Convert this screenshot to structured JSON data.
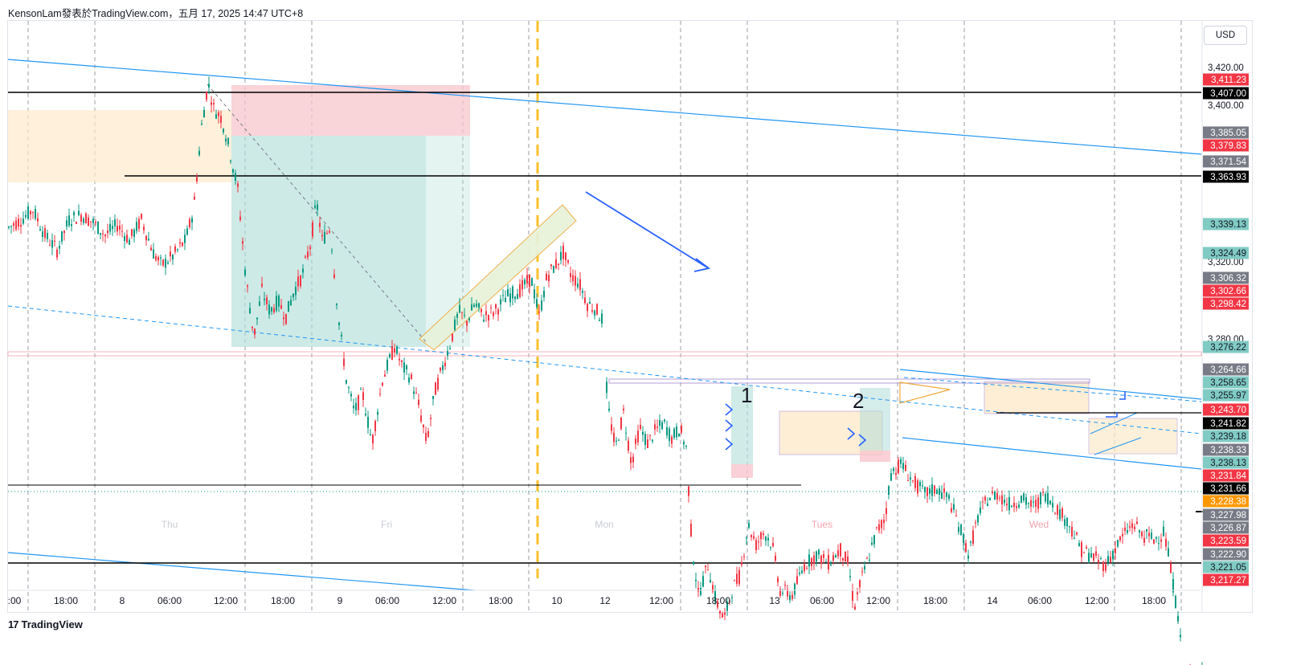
{
  "header": {
    "publisher": "KensonLam發表於TradingView.com，五月 17, 2025 14:47 UTC+8"
  },
  "currency_button": "USD",
  "footer": {
    "logo_glyph": "17",
    "brand": "TradingView"
  },
  "colors": {
    "up": "#089981",
    "down": "#f23645",
    "trendline": "#2196f3",
    "arrow": "#2962ff",
    "zone_red": "#f7c5cc",
    "zone_green": "#b2dfd8",
    "zone_orange": "#fdeacb",
    "session_marker": "#fbc02d"
  },
  "chart_data": {
    "type": "candlestick",
    "symbol_currency": "USD",
    "price_axis": {
      "range": [
        3212,
        3432
      ],
      "ticks": [
        "3,420.00",
        "3,400.00",
        "3,320.00",
        "3,280.00"
      ]
    },
    "time_axis": {
      "ticks": [
        ":00",
        "18:00",
        "8",
        "06:00",
        "12:00",
        "18:00",
        "9",
        "06:00",
        "12:00",
        "18:00",
        "10",
        "12",
        "12:00",
        "18:00",
        "13",
        "06:00",
        "12:00",
        "18:00",
        "14",
        "06:00",
        "12:00",
        "18:00"
      ]
    },
    "day_watermarks": [
      "Thu",
      "Fri",
      "Mon",
      "Tues",
      "Wed"
    ],
    "price_labels": [
      {
        "text": "3,411.23",
        "value": 3411.23,
        "style": "red"
      },
      {
        "text": "3,407.00",
        "value": 3407.0,
        "style": "black"
      },
      {
        "text": "3,385.05",
        "value": 3385.05,
        "style": "gray"
      },
      {
        "text": "3,379.83",
        "value": 3379.83,
        "style": "red"
      },
      {
        "text": "3,371.54",
        "value": 3371.54,
        "style": "gray"
      },
      {
        "text": "3,363.93",
        "value": 3363.93,
        "style": "black"
      },
      {
        "text": "3,339.13",
        "value": 3339.13,
        "style": "green"
      },
      {
        "text": "3,324.49",
        "value": 3324.49,
        "style": "green"
      },
      {
        "text": "3,306.32",
        "value": 3306.32,
        "style": "gray"
      },
      {
        "text": "3,302.66",
        "value": 3302.66,
        "style": "red"
      },
      {
        "text": "3,298.42",
        "value": 3298.42,
        "style": "red"
      },
      {
        "text": "3,276.22",
        "value": 3276.22,
        "style": "green"
      },
      {
        "text": "3,264.66",
        "value": 3264.66,
        "style": "gray"
      },
      {
        "text": "3,258.65",
        "value": 3258.65,
        "style": "green"
      },
      {
        "text": "3,255.97",
        "value": 3255.97,
        "style": "green"
      },
      {
        "text": "3,243.70",
        "value": 3243.7,
        "style": "red"
      },
      {
        "text": "3,241.82",
        "value": 3241.82,
        "style": "black"
      },
      {
        "text": "3,239.18",
        "value": 3239.18,
        "style": "green"
      },
      {
        "text": "3,238.33",
        "value": 3238.33,
        "style": "gray"
      },
      {
        "text": "3,238.13",
        "value": 3238.13,
        "style": "green"
      },
      {
        "text": "3,231.84",
        "value": 3231.84,
        "style": "red"
      },
      {
        "text": "3,231.66",
        "value": 3231.66,
        "style": "black"
      },
      {
        "text": "3,228.38",
        "value": 3228.38,
        "style": "orange"
      },
      {
        "text": "3,227.98",
        "value": 3227.98,
        "style": "gray"
      },
      {
        "text": "3,226.87",
        "value": 3226.87,
        "style": "gray"
      },
      {
        "text": "3,223.59",
        "value": 3223.59,
        "style": "red"
      },
      {
        "text": "3,222.90",
        "value": 3222.9,
        "style": "gray"
      },
      {
        "text": "3,221.05",
        "value": 3221.05,
        "style": "green"
      },
      {
        "text": "3,217.27",
        "value": 3217.27,
        "style": "red"
      }
    ],
    "horizontal_levels": [
      3407.0,
      3363.93,
      3241.82,
      3233.5,
      3221.05
    ],
    "annotations": [
      "1",
      "2"
    ],
    "price_path": [
      [
        0,
        3350
      ],
      [
        10,
        3355
      ],
      [
        25,
        3358
      ],
      [
        40,
        3362
      ],
      [
        55,
        3352
      ],
      [
        70,
        3346
      ],
      [
        85,
        3358
      ],
      [
        100,
        3360
      ],
      [
        115,
        3357
      ],
      [
        130,
        3352
      ],
      [
        145,
        3356
      ],
      [
        160,
        3350
      ],
      [
        175,
        3358
      ],
      [
        190,
        3345
      ],
      [
        200,
        3340
      ],
      [
        215,
        3344
      ],
      [
        230,
        3350
      ],
      [
        240,
        3362
      ],
      [
        250,
        3395
      ],
      [
        258,
        3412
      ],
      [
        265,
        3402
      ],
      [
        275,
        3398
      ],
      [
        285,
        3385
      ],
      [
        295,
        3370
      ],
      [
        305,
        3335
      ],
      [
        315,
        3312
      ],
      [
        325,
        3330
      ],
      [
        335,
        3322
      ],
      [
        345,
        3326
      ],
      [
        355,
        3320
      ],
      [
        365,
        3330
      ],
      [
        375,
        3336
      ],
      [
        385,
        3348
      ],
      [
        393,
        3365
      ],
      [
        400,
        3350
      ],
      [
        410,
        3355
      ],
      [
        420,
        3320
      ],
      [
        430,
        3295
      ],
      [
        440,
        3282
      ],
      [
        450,
        3290
      ],
      [
        462,
        3270
      ],
      [
        475,
        3295
      ],
      [
        490,
        3308
      ],
      [
        500,
        3300
      ],
      [
        510,
        3296
      ],
      [
        520,
        3285
      ],
      [
        530,
        3270
      ],
      [
        540,
        3290
      ],
      [
        550,
        3300
      ],
      [
        560,
        3310
      ],
      [
        570,
        3322
      ],
      [
        580,
        3318
      ],
      [
        590,
        3325
      ],
      [
        600,
        3320
      ],
      [
        615,
        3322
      ],
      [
        630,
        3328
      ],
      [
        645,
        3330
      ],
      [
        660,
        3335
      ],
      [
        670,
        3320
      ],
      [
        680,
        3336
      ],
      [
        690,
        3340
      ],
      [
        700,
        3345
      ],
      [
        710,
        3336
      ],
      [
        720,
        3333
      ],
      [
        730,
        3325
      ],
      [
        740,
        3323
      ],
      [
        750,
        3318
      ],
      [
        755,
        3285
      ],
      [
        765,
        3268
      ],
      [
        775,
        3282
      ],
      [
        785,
        3262
      ],
      [
        795,
        3276
      ],
      [
        805,
        3270
      ],
      [
        815,
        3275
      ],
      [
        825,
        3278
      ],
      [
        835,
        3272
      ],
      [
        845,
        3276
      ],
      [
        853,
        3268
      ],
      [
        860,
        3230
      ],
      [
        868,
        3210
      ],
      [
        880,
        3222
      ],
      [
        890,
        3208
      ],
      [
        900,
        3200
      ],
      [
        910,
        3212
      ],
      [
        920,
        3218
      ],
      [
        930,
        3238
      ],
      [
        940,
        3230
      ],
      [
        950,
        3235
      ],
      [
        960,
        3230
      ],
      [
        970,
        3212
      ],
      [
        985,
        3210
      ],
      [
        1000,
        3222
      ],
      [
        1015,
        3226
      ],
      [
        1030,
        3223
      ],
      [
        1045,
        3228
      ],
      [
        1055,
        3222
      ],
      [
        1062,
        3205
      ],
      [
        1070,
        3215
      ],
      [
        1080,
        3225
      ],
      [
        1090,
        3235
      ],
      [
        1100,
        3240
      ],
      [
        1108,
        3258
      ],
      [
        1120,
        3262
      ],
      [
        1135,
        3255
      ],
      [
        1150,
        3250
      ],
      [
        1165,
        3252
      ],
      [
        1180,
        3248
      ],
      [
        1192,
        3238
      ],
      [
        1205,
        3226
      ],
      [
        1215,
        3240
      ],
      [
        1228,
        3248
      ],
      [
        1240,
        3250
      ],
      [
        1255,
        3246
      ],
      [
        1270,
        3248
      ],
      [
        1285,
        3245
      ],
      [
        1300,
        3250
      ],
      [
        1315,
        3244
      ],
      [
        1330,
        3238
      ],
      [
        1345,
        3228
      ],
      [
        1360,
        3225
      ],
      [
        1375,
        3222
      ],
      [
        1390,
        3230
      ],
      [
        1400,
        3235
      ],
      [
        1410,
        3238
      ],
      [
        1420,
        3234
      ],
      [
        1435,
        3232
      ],
      [
        1448,
        3235
      ],
      [
        1455,
        3222
      ],
      [
        1460,
        3212
      ],
      [
        1466,
        3200
      ],
      [
        1472,
        3175
      ],
      [
        1480,
        3180
      ],
      [
        1488,
        3178
      ],
      [
        1495,
        3182
      ]
    ]
  }
}
